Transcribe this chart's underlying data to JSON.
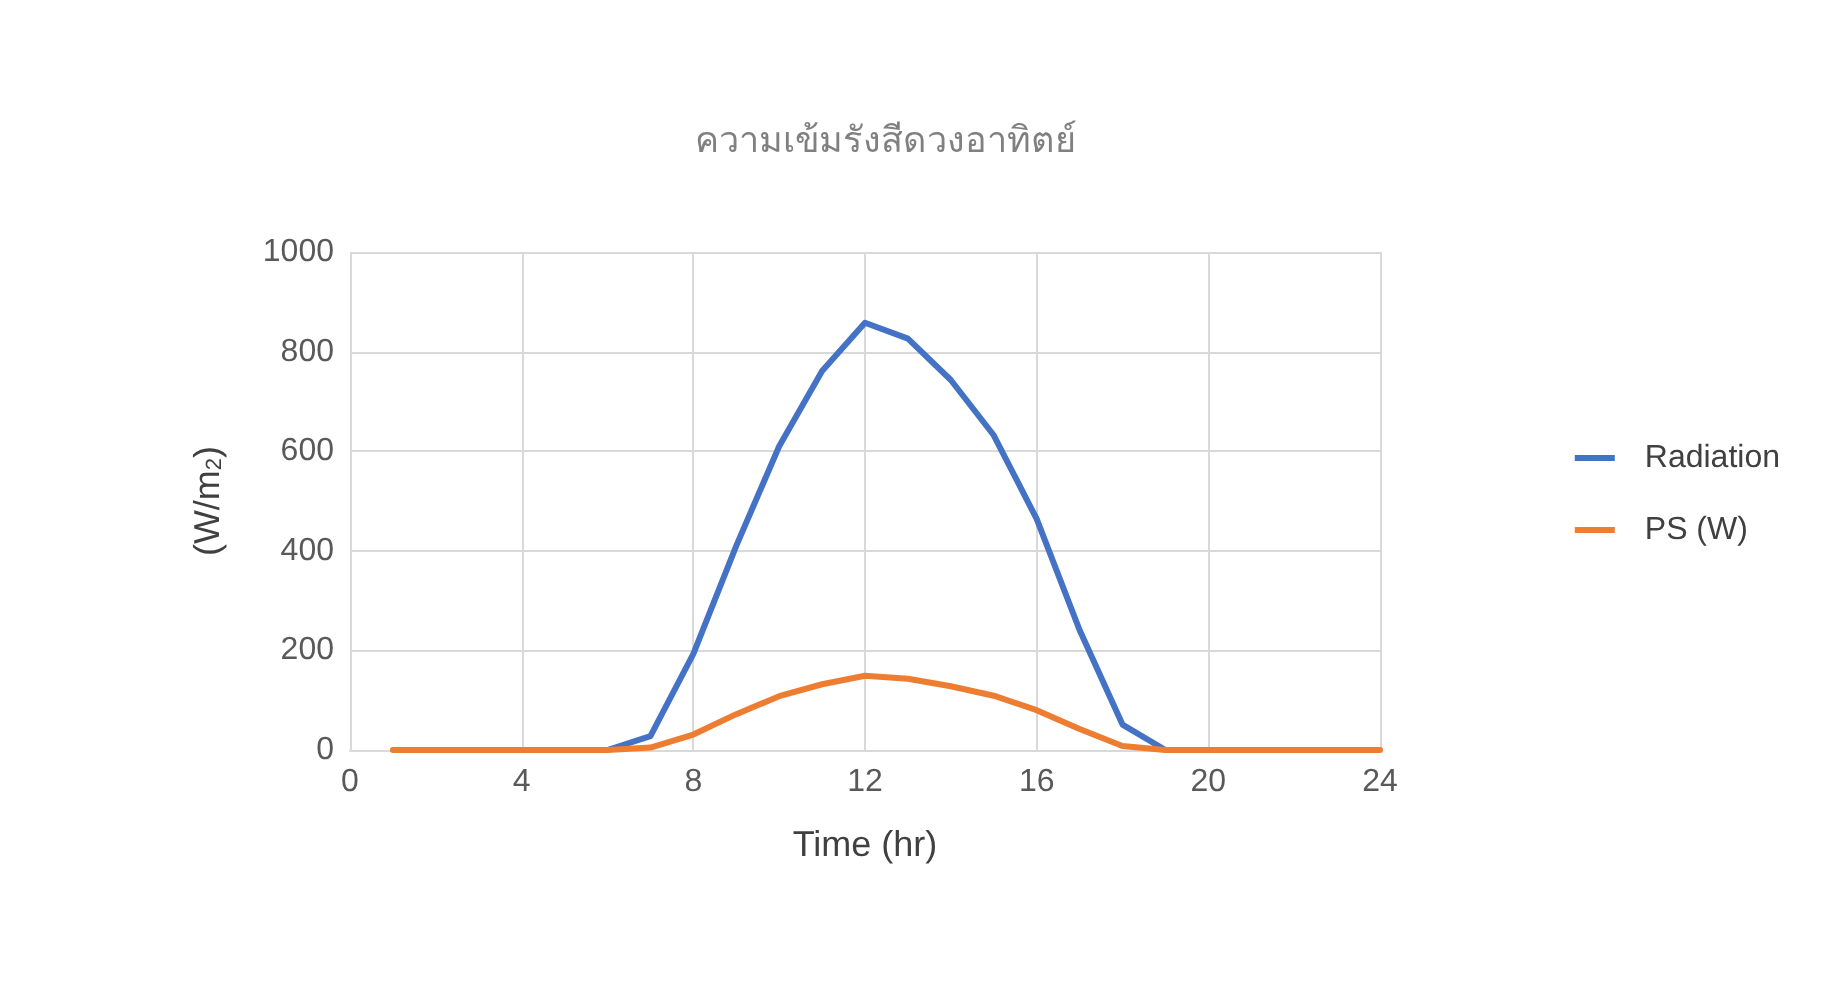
{
  "chart_data": {
    "type": "line",
    "title": "ความเข้มรังสีดวงอาทิตย์",
    "xlabel": "Time (hr)",
    "ylabel": "(W/m$_{2}$)",
    "x": [
      1,
      2,
      3,
      4,
      5,
      6,
      7,
      8,
      9,
      10,
      11,
      12,
      13,
      14,
      15,
      16,
      17,
      18,
      19,
      20,
      21,
      22,
      23,
      24
    ],
    "series": [
      {
        "name": "Radiation",
        "color": "#4472c4",
        "values": [
          null,
          null,
          null,
          null,
          0,
          0,
          28,
          193,
          410,
          610,
          761,
          858,
          826,
          743,
          632,
          464,
          241,
          51,
          0,
          0,
          null,
          null,
          null,
          null
        ]
      },
      {
        "name": "PS (W)",
        "color": "#ed7d31",
        "values": [
          0,
          0,
          0,
          0,
          0,
          0,
          5,
          31,
          72,
          108,
          132,
          149,
          143,
          128,
          109,
          80,
          42,
          8,
          0,
          0,
          0,
          0,
          0,
          0
        ]
      }
    ],
    "xlim": [
      0,
      24
    ],
    "xticks": [
      0,
      4,
      8,
      12,
      16,
      20,
      24
    ],
    "ylim": [
      0,
      1000
    ],
    "yticks": [
      0,
      200,
      400,
      600,
      800,
      1000
    ],
    "grid": true,
    "legend": "right",
    "marker": "none",
    "line_style": "solid"
  }
}
